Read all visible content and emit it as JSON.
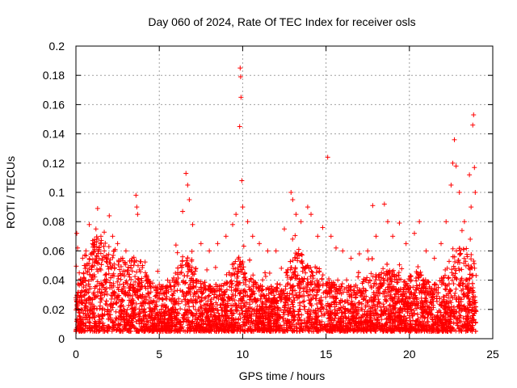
{
  "chart_data": {
    "type": "scatter",
    "title": "Day 060 of 2024, Rate Of TEC Index for receiver osls",
    "xlabel": "GPS time / hours",
    "ylabel": "ROTI / TECUs",
    "xlim": [
      0,
      25
    ],
    "ylim": [
      0,
      0.2
    ],
    "x_ticks": [
      0,
      5,
      10,
      15,
      20,
      25
    ],
    "x_tick_labels": [
      "0",
      "5",
      "10",
      "15",
      "20",
      "25"
    ],
    "y_ticks": [
      0,
      0.02,
      0.04,
      0.06,
      0.08,
      0.1,
      0.12,
      0.14,
      0.16,
      0.18,
      0.2
    ],
    "y_tick_labels": [
      "0",
      "0.02",
      "0.04",
      "0.06",
      "0.08",
      "0.1",
      "0.12",
      "0.14",
      "0.16",
      "0.18",
      "0.2"
    ],
    "grid": true,
    "marker": "plus",
    "color": "#ff0000",
    "series": [
      {
        "name": "ROTI",
        "points": [
          [
            0.0,
            0.028
          ],
          [
            0.05,
            0.072
          ],
          [
            0.1,
            0.062
          ],
          [
            0.2,
            0.045
          ],
          [
            0.3,
            0.038
          ],
          [
            0.4,
            0.055
          ],
          [
            0.5,
            0.05
          ],
          [
            0.6,
            0.06
          ],
          [
            0.8,
            0.078
          ],
          [
            1.0,
            0.065
          ],
          [
            1.2,
            0.075
          ],
          [
            1.3,
            0.089
          ],
          [
            1.5,
            0.07
          ],
          [
            1.7,
            0.06
          ],
          [
            2.0,
            0.084
          ],
          [
            2.2,
            0.07
          ],
          [
            2.5,
            0.065
          ],
          [
            2.8,
            0.055
          ],
          [
            3.0,
            0.06
          ],
          [
            3.3,
            0.05
          ],
          [
            3.6,
            0.098
          ],
          [
            3.65,
            0.09
          ],
          [
            3.7,
            0.085
          ],
          [
            4.0,
            0.05
          ],
          [
            4.3,
            0.04
          ],
          [
            4.6,
            0.038
          ],
          [
            5.0,
            0.037
          ],
          [
            5.5,
            0.04
          ],
          [
            6.0,
            0.064
          ],
          [
            6.4,
            0.087
          ],
          [
            6.6,
            0.113
          ],
          [
            6.7,
            0.105
          ],
          [
            6.8,
            0.095
          ],
          [
            7.0,
            0.078
          ],
          [
            7.5,
            0.065
          ],
          [
            8.0,
            0.06
          ],
          [
            8.5,
            0.065
          ],
          [
            9.0,
            0.07
          ],
          [
            9.4,
            0.078
          ],
          [
            9.6,
            0.085
          ],
          [
            9.85,
            0.185
          ],
          [
            9.88,
            0.179
          ],
          [
            9.9,
            0.165
          ],
          [
            9.82,
            0.145
          ],
          [
            9.95,
            0.108
          ],
          [
            10.0,
            0.09
          ],
          [
            10.3,
            0.08
          ],
          [
            10.6,
            0.07
          ],
          [
            11.0,
            0.065
          ],
          [
            11.5,
            0.06
          ],
          [
            12.0,
            0.06
          ],
          [
            12.5,
            0.075
          ],
          [
            12.9,
            0.1
          ],
          [
            13.0,
            0.095
          ],
          [
            13.2,
            0.085
          ],
          [
            13.5,
            0.08
          ],
          [
            13.9,
            0.09
          ],
          [
            14.1,
            0.085
          ],
          [
            14.5,
            0.07
          ],
          [
            14.8,
            0.076
          ],
          [
            15.1,
            0.124
          ],
          [
            15.3,
            0.07
          ],
          [
            15.6,
            0.062
          ],
          [
            16.0,
            0.06
          ],
          [
            16.5,
            0.055
          ],
          [
            17.0,
            0.058
          ],
          [
            17.5,
            0.06
          ],
          [
            17.8,
            0.091
          ],
          [
            18.0,
            0.07
          ],
          [
            18.5,
            0.092
          ],
          [
            18.7,
            0.08
          ],
          [
            19.0,
            0.07
          ],
          [
            19.4,
            0.079
          ],
          [
            19.8,
            0.065
          ],
          [
            20.3,
            0.072
          ],
          [
            20.6,
            0.08
          ],
          [
            21.0,
            0.06
          ],
          [
            21.5,
            0.055
          ],
          [
            21.9,
            0.065
          ],
          [
            22.2,
            0.08
          ],
          [
            22.5,
            0.105
          ],
          [
            22.6,
            0.12
          ],
          [
            22.7,
            0.136
          ],
          [
            22.8,
            0.118
          ],
          [
            23.0,
            0.1
          ],
          [
            23.3,
            0.08
          ],
          [
            23.6,
            0.112
          ],
          [
            23.7,
            0.09
          ],
          [
            23.85,
            0.153
          ],
          [
            23.8,
            0.146
          ],
          [
            23.9,
            0.117
          ],
          [
            23.95,
            0.1
          ]
        ],
        "dense_band": {
          "x_range": [
            0,
            24
          ],
          "y_min": 0.005,
          "y_typical": [
            0.01,
            0.045
          ]
        }
      }
    ]
  }
}
